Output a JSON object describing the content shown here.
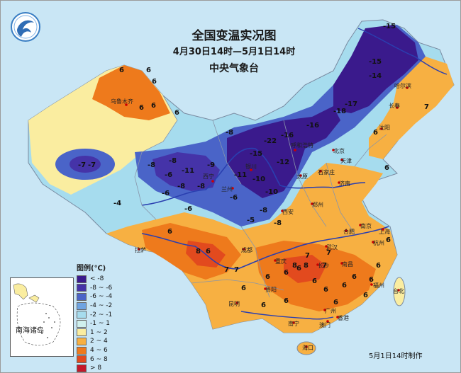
{
  "title": "全国变温实况图",
  "subtitle": "4月30日14时—5月1日14时",
  "agency": "中央气象台",
  "footnote": "5月1日14时制作",
  "inset_label": "南海诸岛",
  "legend": {
    "title": "图例(℃)",
    "items": [
      {
        "label": "< -8",
        "color": "#3a1a8c"
      },
      {
        "label": "-8 ~ -6",
        "color": "#4533a8"
      },
      {
        "label": "-6 ~ -4",
        "color": "#4a64c8"
      },
      {
        "label": "-4 ~ -2",
        "color": "#6fa4e2"
      },
      {
        "label": "-2 ~ -1",
        "color": "#a6dcee"
      },
      {
        "label": "-1 ~ 1",
        "color": "#cff0ee"
      },
      {
        "label": "1 ~ 2",
        "color": "#faeda0"
      },
      {
        "label": "2 ~ 4",
        "color": "#f7b042"
      },
      {
        "label": "4 ~ 6",
        "color": "#ee7a1c"
      },
      {
        "label": "6 ~ 8",
        "color": "#e24a1e"
      },
      {
        "label": "> 8",
        "color": "#c4182a"
      }
    ]
  },
  "cities": [
    "乌鲁木齐",
    "哈尔滨",
    "长春",
    "沈阳",
    "北京",
    "天津",
    "石家庄",
    "太原",
    "济南",
    "呼和浩特",
    "银川",
    "兰州",
    "西宁",
    "西安",
    "郑州",
    "南京",
    "上海",
    "合肥",
    "武汉",
    "杭州",
    "南昌",
    "长沙",
    "福州",
    "台北",
    "成都",
    "重庆",
    "贵阳",
    "昆明",
    "南宁",
    "广州",
    "香港",
    "海口",
    "拉萨",
    "澳门"
  ],
  "temperature_values": [
    "6",
    "6",
    "6",
    "6",
    "6",
    "6",
    "-7",
    "-7",
    "-8",
    "-8",
    "-11",
    "-9",
    "-6",
    "-8",
    "-8",
    "-8",
    "-15",
    "-22",
    "-16",
    "-12",
    "-16",
    "-17",
    "-14",
    "-15",
    "-15",
    "-18",
    "-11",
    "-10",
    "-10",
    "-8",
    "-6",
    "-8",
    "-6",
    "-5",
    "-4",
    "-6",
    "8",
    "6",
    "6",
    "7",
    "7",
    "6",
    "6",
    "6",
    "6",
    "7",
    "6",
    "8",
    "8",
    "6",
    "6",
    "6",
    "6",
    "6",
    "6",
    "6",
    "6",
    "7",
    "7",
    "7",
    "6",
    "6",
    "6",
    "6"
  ]
}
